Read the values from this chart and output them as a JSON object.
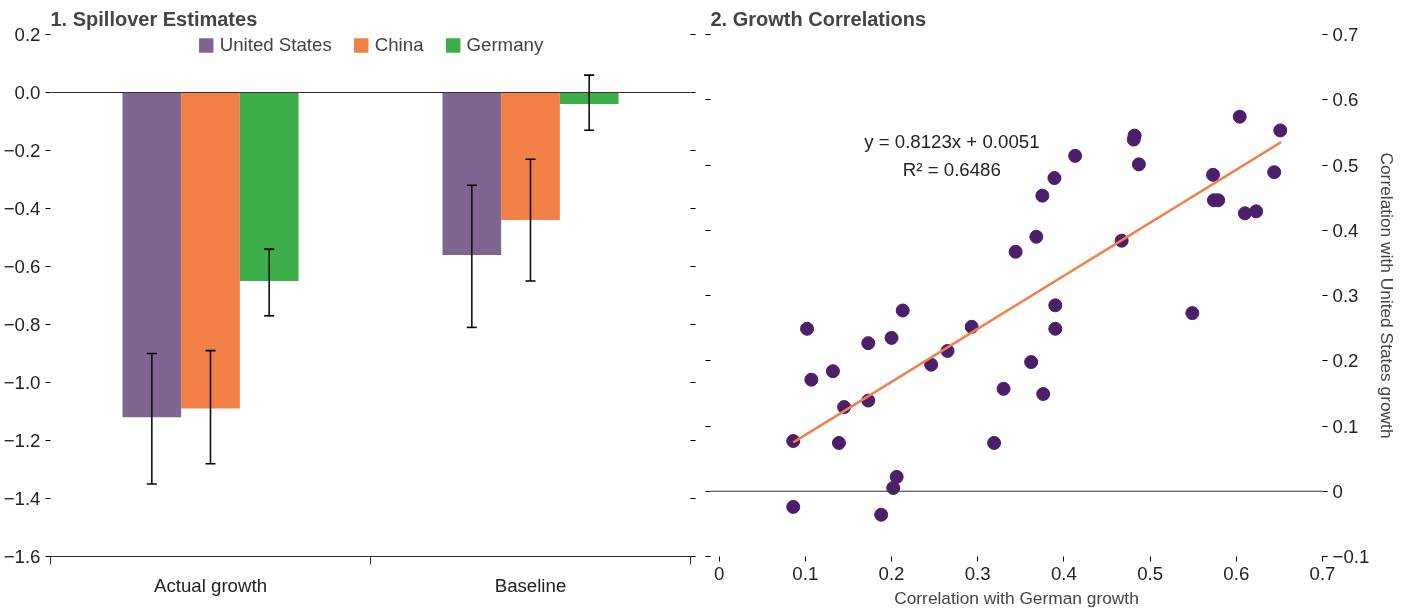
{
  "chart_data": [
    {
      "type": "bar",
      "title": "1. Spillover Estimates",
      "categories": [
        "Actual growth",
        "Baseline"
      ],
      "series": [
        {
          "name": "United States",
          "color": "#7f6690",
          "values": [
            -1.12,
            -0.56
          ],
          "errors": [
            [
              -1.35,
              -0.9
            ],
            [
              -0.81,
              -0.32
            ]
          ]
        },
        {
          "name": "China",
          "color": "#f27f45",
          "values": [
            -1.09,
            -0.44
          ],
          "errors": [
            [
              -1.28,
              -0.89
            ],
            [
              -0.65,
              -0.23
            ]
          ]
        },
        {
          "name": "Germany",
          "color": "#3bae49",
          "values": [
            -0.65,
            -0.04
          ],
          "errors": [
            [
              -0.77,
              -0.54
            ],
            [
              -0.13,
              0.06
            ]
          ]
        }
      ],
      "ylim": [
        -1.6,
        0.2
      ],
      "yticks": [
        {
          "value": -1.6,
          "label": "−1.6"
        },
        {
          "value": -1.4,
          "label": "−1.4"
        },
        {
          "value": -1.2,
          "label": "−1.2"
        },
        {
          "value": -1.0,
          "label": "−1.0"
        },
        {
          "value": -0.8,
          "label": "−0.8"
        },
        {
          "value": -0.6,
          "label": "−0.6"
        },
        {
          "value": -0.4,
          "label": "−0.4"
        },
        {
          "value": -0.2,
          "label": "−0.2"
        },
        {
          "value": 0,
          "label": "0.0"
        },
        {
          "value": 0.2,
          "label": "0.2"
        }
      ],
      "ref_lines": [
        {
          "axis": "y",
          "value": 0,
          "label": null,
          "color": "#333333"
        }
      ],
      "legend": "top",
      "grid": false
    },
    {
      "type": "scatter",
      "title": "2. Growth Correlations",
      "xlabel": "Correlation with German growth",
      "ylabel": "Correlation with United States growth",
      "annotations": [
        "y = 0.8123x + 0.0051",
        "R² = 0.6486"
      ],
      "x": [
        0.086,
        0.102,
        0.107,
        0.132,
        0.145,
        0.139,
        0.086,
        0.173,
        0.173,
        0.188,
        0.2,
        0.213,
        0.202,
        0.206,
        0.246,
        0.265,
        0.293,
        0.319,
        0.33,
        0.344,
        0.362,
        0.368,
        0.375,
        0.376,
        0.389,
        0.39,
        0.39,
        0.413,
        0.467,
        0.481,
        0.482,
        0.487,
        0.549,
        0.573,
        0.574,
        0.579,
        0.604,
        0.61,
        0.623,
        0.644,
        0.651
      ],
      "series": [
        {
          "color": "#4b1f6a",
          "values": [
            -0.024,
            0.249,
            0.171,
            0.184,
            0.129,
            0.074,
            0.077,
            0.227,
            0.139,
            -0.036,
            0.235,
            0.277,
            0.005,
            0.022,
            0.194,
            0.215,
            0.252,
            0.074,
            0.157,
            0.367,
            0.198,
            0.39,
            0.453,
            0.149,
            0.48,
            0.285,
            0.249,
            0.514,
            0.384,
            0.539,
            0.545,
            0.501,
            0.273,
            0.485,
            0.446,
            0.446,
            0.574,
            0.426,
            0.429,
            0.489,
            0.553
          ]
        },
        {
          "type": "line",
          "marker": "none",
          "color": "#f4804a",
          "x": [
            0.086,
            0.652
          ],
          "values": [
            0.075,
            0.535
          ]
        }
      ],
      "marker": "circle",
      "xlim": [
        -0.01,
        0.7
      ],
      "xticks": [
        0,
        0.1,
        0.2,
        0.3,
        0.4,
        0.5,
        0.6,
        0.7
      ],
      "ylim": [
        -0.1,
        0.7
      ],
      "yticks": [
        {
          "value": -0.1,
          "label": "−0.1"
        },
        0,
        0.1,
        0.2,
        0.3,
        0.4,
        0.5,
        0.6,
        0.7
      ],
      "ref_lines": [
        {
          "axis": "y",
          "value": 0,
          "label": null,
          "color": "#333333"
        }
      ],
      "grid": false
    }
  ]
}
